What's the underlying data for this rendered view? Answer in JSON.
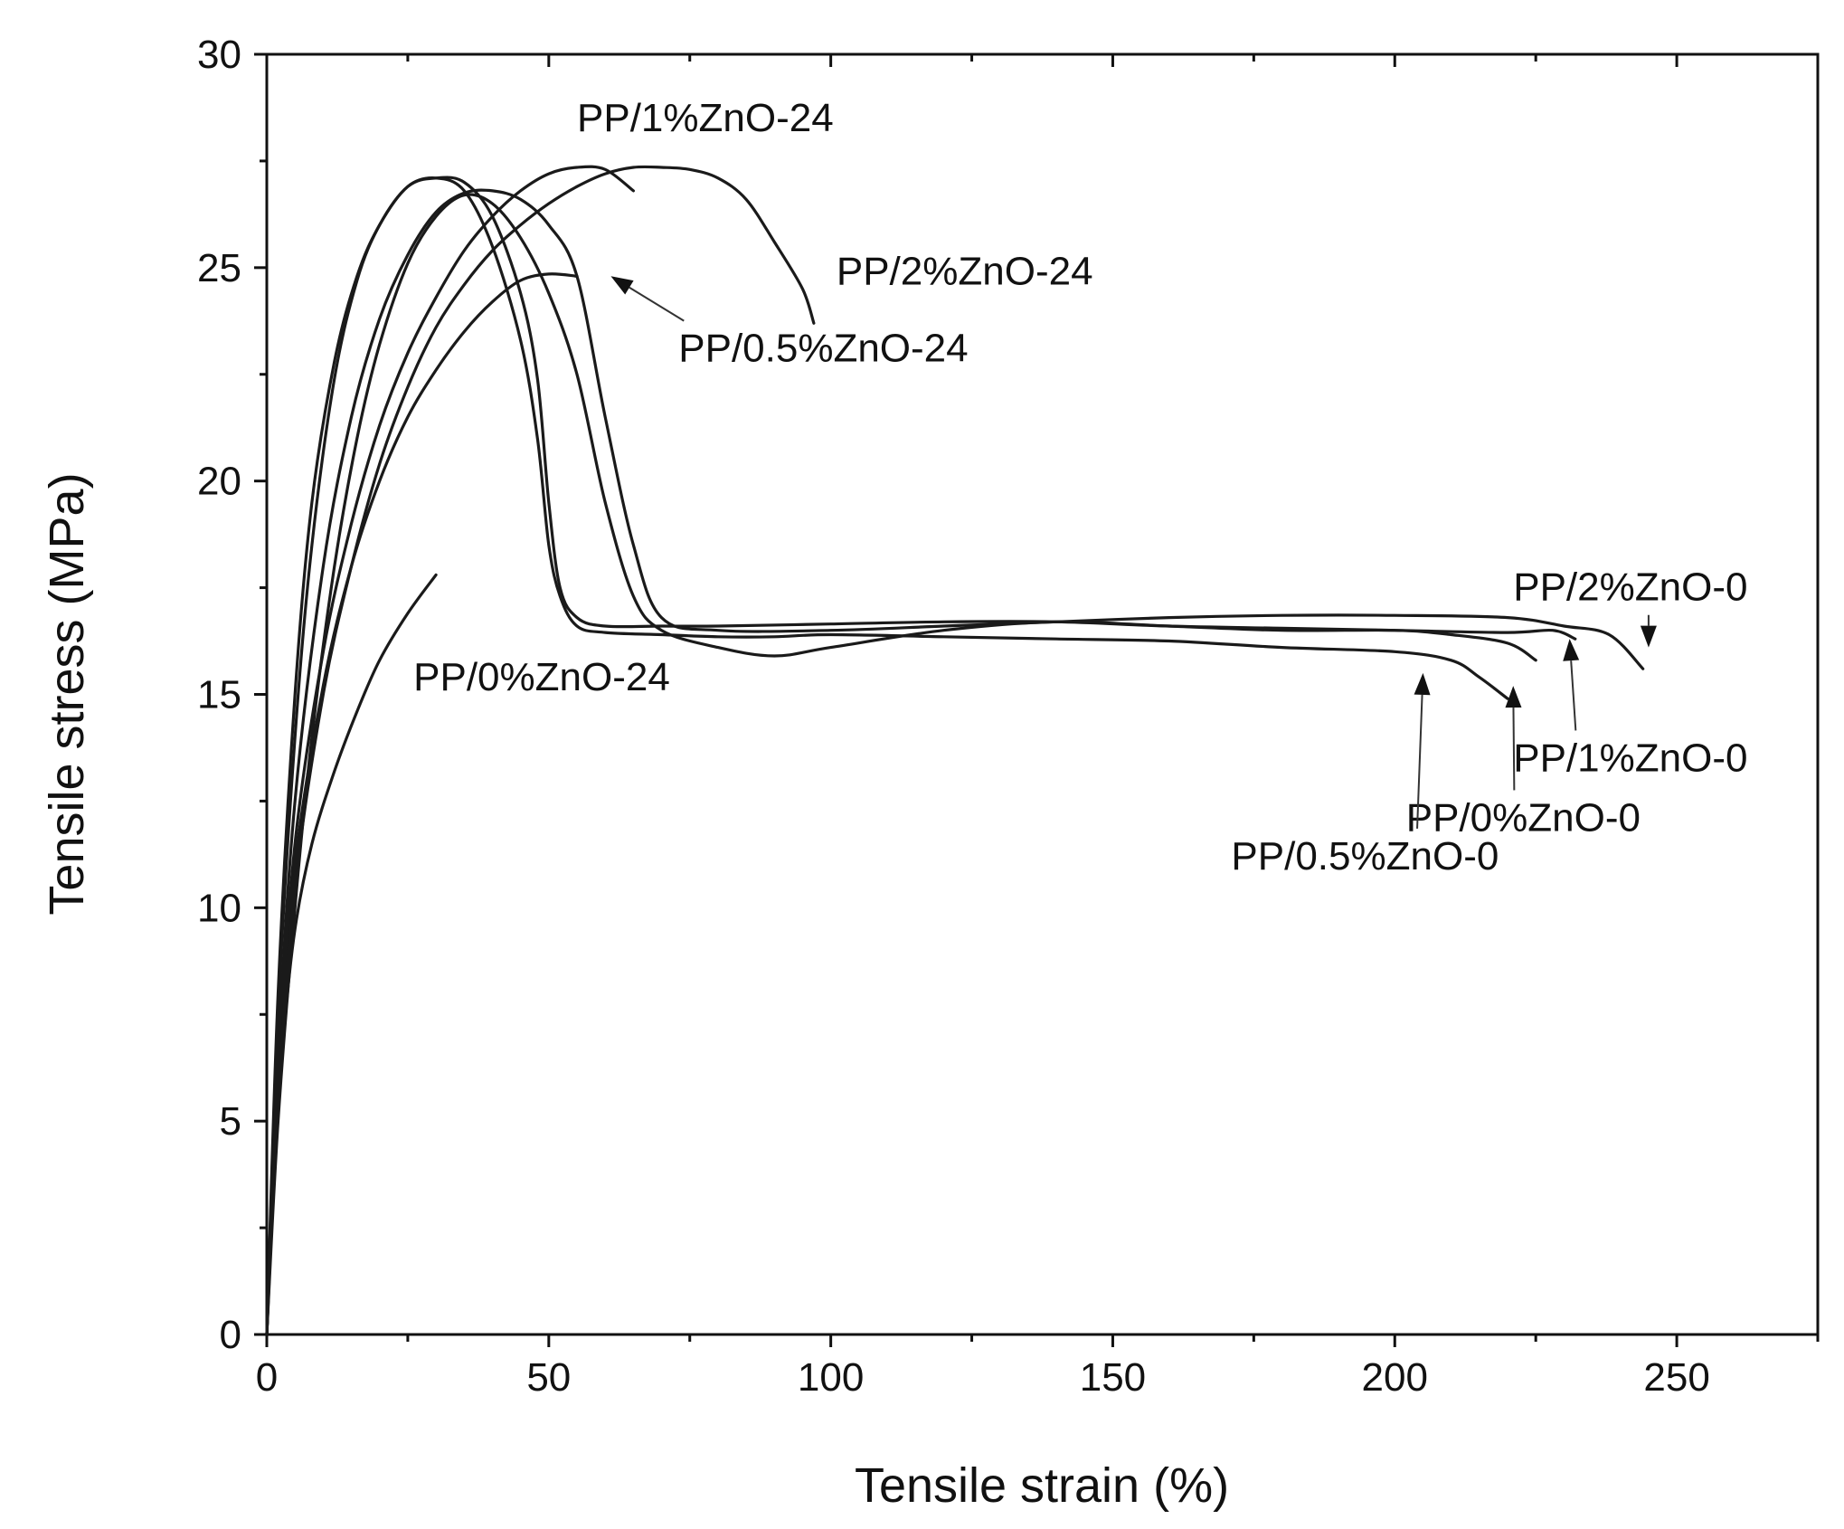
{
  "chart_data": {
    "type": "line",
    "title": "",
    "xlabel": "Tensile strain (%)",
    "ylabel": "Tensile stress (MPa)",
    "xlim": [
      0,
      275
    ],
    "ylim": [
      0,
      30
    ],
    "x_ticks": [
      0,
      50,
      100,
      150,
      200,
      250
    ],
    "y_ticks": [
      0,
      5,
      10,
      15,
      20,
      25,
      30
    ],
    "legend": "none",
    "grid": false,
    "series": [
      {
        "name": "PP/0%ZnO-24",
        "x": [
          0,
          1,
          3,
          5,
          8,
          12,
          16,
          20,
          25,
          30
        ],
        "y": [
          0,
          3,
          7,
          9.5,
          11.5,
          13.2,
          14.6,
          15.8,
          16.9,
          17.8
        ]
      },
      {
        "name": "PP/0.5%ZnO-24",
        "x": [
          0,
          2,
          5,
          10,
          15,
          20,
          25,
          30,
          35,
          40,
          45,
          50,
          55
        ],
        "y": [
          0,
          6,
          11,
          15.2,
          18,
          20,
          21.5,
          22.6,
          23.5,
          24.2,
          24.7,
          24.85,
          24.8
        ]
      },
      {
        "name": "PP/1%ZnO-24",
        "x": [
          0,
          2,
          5,
          10,
          15,
          20,
          25,
          30,
          35,
          40,
          45,
          50,
          55,
          60,
          65
        ],
        "y": [
          0,
          6,
          11.5,
          16,
          19,
          21.3,
          23,
          24.3,
          25.4,
          26.2,
          26.8,
          27.2,
          27.35,
          27.3,
          26.8
        ]
      },
      {
        "name": "PP/2%ZnO-24",
        "x": [
          0,
          2,
          5,
          10,
          15,
          20,
          25,
          30,
          35,
          40,
          45,
          50,
          55,
          60,
          65,
          70,
          75,
          80,
          85,
          90,
          95,
          97
        ],
        "y": [
          0,
          5.5,
          10.5,
          15,
          18,
          20.4,
          22.2,
          23.6,
          24.6,
          25.4,
          26,
          26.5,
          26.9,
          27.2,
          27.35,
          27.35,
          27.3,
          27.1,
          26.6,
          25.6,
          24.5,
          23.7
        ]
      },
      {
        "name": "PP/0%ZnO-0",
        "x": [
          0,
          2,
          5,
          8,
          12,
          16,
          20,
          25,
          30,
          35,
          40,
          45,
          48,
          50,
          52,
          55,
          60,
          70,
          80,
          90,
          100,
          120,
          140,
          160,
          180,
          200,
          210,
          215,
          220
        ],
        "y": [
          0,
          8,
          15,
          19.5,
          22.8,
          24.8,
          26,
          26.9,
          27.1,
          26.8,
          25.5,
          23.3,
          21,
          18.5,
          17.3,
          16.6,
          16.45,
          16.4,
          16.35,
          16.35,
          16.4,
          16.35,
          16.3,
          16.25,
          16.1,
          16,
          15.8,
          15.4,
          14.9
        ]
      },
      {
        "name": "PP/0.5%ZnO-0",
        "x": [
          0,
          2,
          5,
          8,
          12,
          16,
          20,
          25,
          30,
          35,
          40,
          45,
          50,
          55,
          60,
          65,
          70,
          80,
          90,
          100,
          120,
          140,
          160,
          180,
          200,
          210,
          220,
          225
        ],
        "y": [
          0,
          5,
          10,
          14,
          18,
          21,
          23.2,
          25.1,
          26.2,
          26.7,
          26.5,
          25.7,
          24.4,
          22.5,
          19.5,
          17.3,
          16.5,
          16.1,
          15.9,
          16.1,
          16.5,
          16.7,
          16.6,
          16.5,
          16.5,
          16.4,
          16.2,
          15.8
        ]
      },
      {
        "name": "PP/1%ZnO-0",
        "x": [
          0,
          2,
          5,
          8,
          12,
          16,
          20,
          25,
          30,
          35,
          40,
          45,
          48,
          50,
          52,
          55,
          60,
          70,
          80,
          100,
          120,
          140,
          160,
          180,
          200,
          220,
          228,
          232
        ],
        "y": [
          0,
          7.5,
          14,
          18.5,
          22.4,
          24.7,
          26,
          26.9,
          27.1,
          27,
          26.2,
          24.4,
          22.4,
          19.5,
          17.5,
          16.8,
          16.6,
          16.6,
          16.6,
          16.65,
          16.7,
          16.7,
          16.6,
          16.55,
          16.5,
          16.45,
          16.5,
          16.3
        ]
      },
      {
        "name": "PP/2%ZnO-0",
        "x": [
          0,
          2,
          5,
          10,
          15,
          20,
          25,
          30,
          35,
          40,
          45,
          50,
          55,
          60,
          65,
          70,
          80,
          100,
          120,
          140,
          160,
          180,
          200,
          220,
          230,
          238,
          244
        ],
        "y": [
          0,
          6.5,
          12.5,
          18,
          21.5,
          23.8,
          25.3,
          26.3,
          26.75,
          26.8,
          26.6,
          26,
          24.8,
          21.5,
          18.5,
          16.8,
          16.5,
          16.5,
          16.6,
          16.7,
          16.8,
          16.85,
          16.85,
          16.8,
          16.6,
          16.4,
          15.6
        ]
      }
    ],
    "annotations": [
      {
        "text": "PP/1%ZnO-24",
        "x": 55,
        "y": 28.2
      },
      {
        "text": "PP/2%ZnO-24",
        "x": 101,
        "y": 24.6
      },
      {
        "text": "PP/0.5%ZnO-24",
        "x": 73,
        "y": 22.8,
        "arrow_to": [
          61,
          24.8
        ]
      },
      {
        "text": "PP/0%ZnO-24",
        "x": 26,
        "y": 15.1
      },
      {
        "text": "PP/2%ZnO-0",
        "x": 221,
        "y": 17.2,
        "arrow_to": [
          245,
          16.1
        ]
      },
      {
        "text": "PP/1%ZnO-0",
        "x": 221,
        "y": 13.2,
        "arrow_to": [
          231,
          16.3
        ]
      },
      {
        "text": "PP/0%ZnO-0",
        "x": 202,
        "y": 11.8,
        "arrow_to": [
          221,
          15.2
        ]
      },
      {
        "text": "PP/0.5%ZnO-0",
        "x": 171,
        "y": 10.9,
        "arrow_to": [
          205,
          15.5
        ]
      }
    ]
  }
}
